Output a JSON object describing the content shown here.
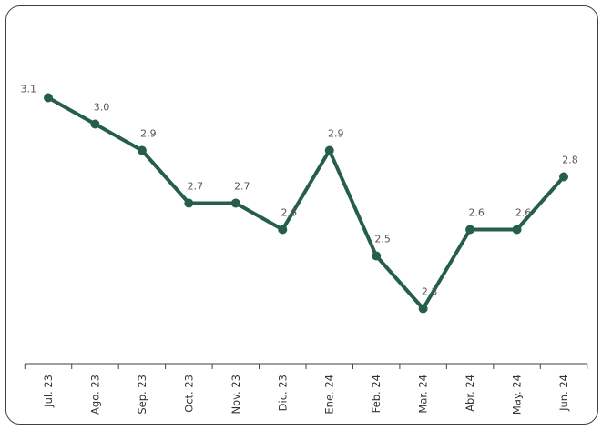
{
  "chart_data": {
    "type": "line",
    "title": "",
    "xlabel": "",
    "ylabel": "",
    "categories": [
      "Jul. 23",
      "Ago. 23",
      "Sep. 23",
      "Oct. 23",
      "Nov. 23",
      "Dic. 23",
      "Ene. 24",
      "Feb. 24",
      "Mar. 24",
      "Abr. 24",
      "May. 24",
      "Jun. 24"
    ],
    "series": [
      {
        "values": [
          3.1,
          3.0,
          2.9,
          2.7,
          2.7,
          2.6,
          2.9,
          2.5,
          2.3,
          2.6,
          2.6,
          2.8
        ],
        "labels": [
          "3.1",
          "3.0",
          "2.9",
          "2.7",
          "2.7",
          "2.6",
          "2.9",
          "2.5",
          "2.3",
          "2.6",
          "2.6",
          "2.8"
        ],
        "color": "#255e4c"
      }
    ],
    "ylim": [
      1.95,
      3.15
    ],
    "grid": false,
    "legend": "none",
    "axis_color": "#404040"
  }
}
